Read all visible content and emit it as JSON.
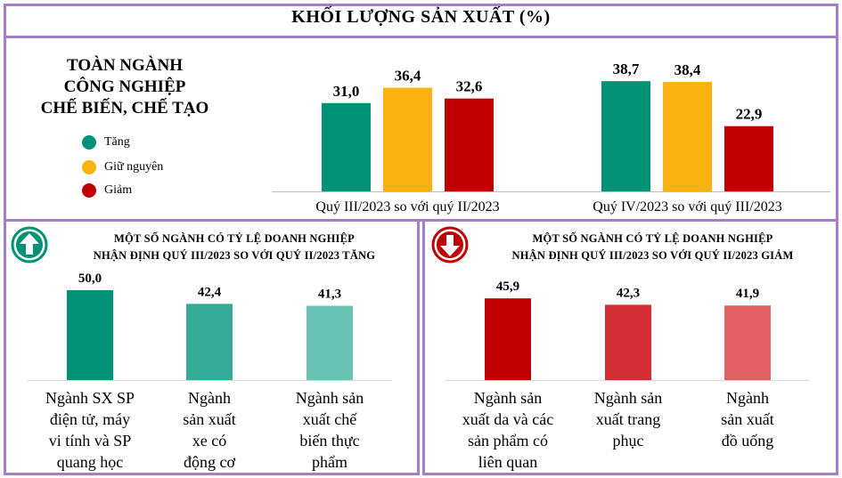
{
  "title": "KHỐI LƯỢNG SẢN XUẤT (%)",
  "section": {
    "title_lines": [
      "TOÀN NGÀNH",
      "CÔNG NGHIỆP",
      "CHẾ BIẾN, CHẾ TẠO"
    ],
    "legend": [
      {
        "label": "Tăng",
        "color": "#009277"
      },
      {
        "label": "Giữ nguyên",
        "color": "#f9b20f"
      },
      {
        "label": "Giảm",
        "color": "#c00000"
      }
    ]
  },
  "icons": {
    "up": "up-arrow-icon",
    "down": "down-arrow-icon"
  },
  "panels": {
    "increase": {
      "title_lines": [
        "MỘT SỐ NGÀNH CÓ TỶ LỆ DOANH NGHIỆP",
        "NHẬN ĐỊNH QUÝ III/2023 SO VỚI QUÝ II/2023 TĂNG"
      ]
    },
    "decrease": {
      "title_lines": [
        "MỘT SỐ NGÀNH CÓ TỶ LỆ DOANH NGHIỆP",
        "NHẬN ĐỊNH QUÝ III/2023 SO VỚI QUÝ II/2023 GIẢM"
      ]
    }
  },
  "chart_data": [
    {
      "id": "overall",
      "type": "bar",
      "title": "KHỐI LƯỢNG SẢN XUẤT (%)",
      "categories": [
        "Quý III/2023 so với quý II/2023",
        "Quý IV/2023 so với quý III/2023"
      ],
      "series": [
        {
          "name": "Tăng",
          "color": "#009277",
          "values": [
            31.0,
            38.7
          ],
          "labels": [
            "31,0",
            "38,7"
          ]
        },
        {
          "name": "Giữ nguyên",
          "color": "#f9b20f",
          "values": [
            36.4,
            38.4
          ],
          "labels": [
            "36,4",
            "38,4"
          ]
        },
        {
          "name": "Giảm",
          "color": "#c00000",
          "values": [
            32.6,
            22.9
          ],
          "labels": [
            "32,6",
            "22,9"
          ]
        }
      ],
      "ylim": [
        0,
        40
      ]
    },
    {
      "id": "increase",
      "type": "bar",
      "title": "MỘT SỐ NGÀNH CÓ TỶ LỆ DOANH NGHIỆP NHẬN ĐỊNH QUÝ III/2023 SO VỚI QUÝ II/2023 TĂNG",
      "categories": [
        [
          "Ngành SX SP",
          "điện tử, máy",
          "vi tính và SP",
          "quang học"
        ],
        [
          "Ngành",
          "sản xuất",
          "xe có",
          "động cơ"
        ],
        [
          "Ngành sản",
          "xuất chế",
          "biến thực",
          "phẩm"
        ]
      ],
      "values": [
        50.0,
        42.4,
        41.3
      ],
      "labels": [
        "50,0",
        "42,4",
        "41,3"
      ],
      "colors": [
        "#009277",
        "#35ab97",
        "#69c2b3"
      ],
      "ylim": [
        0,
        50
      ]
    },
    {
      "id": "decrease",
      "type": "bar",
      "title": "MỘT SỐ NGÀNH CÓ TỶ LỆ DOANH NGHIỆP NHẬN ĐỊNH QUÝ III/2023 SO VỚI QUÝ II/2023 GIẢM",
      "categories": [
        [
          "Ngành sản",
          "xuất da và các",
          "sản phẩm có",
          "liên quan"
        ],
        [
          "Ngành sản",
          "xuất trang",
          "phục"
        ],
        [
          "Ngành",
          "sản xuất",
          "đồ uống"
        ]
      ],
      "values": [
        45.9,
        42.3,
        41.9
      ],
      "labels": [
        "45,9",
        "42,3",
        "41,9"
      ],
      "colors": [
        "#c00000",
        "#d42e34",
        "#e06063"
      ],
      "ylim": [
        0,
        46
      ]
    }
  ]
}
